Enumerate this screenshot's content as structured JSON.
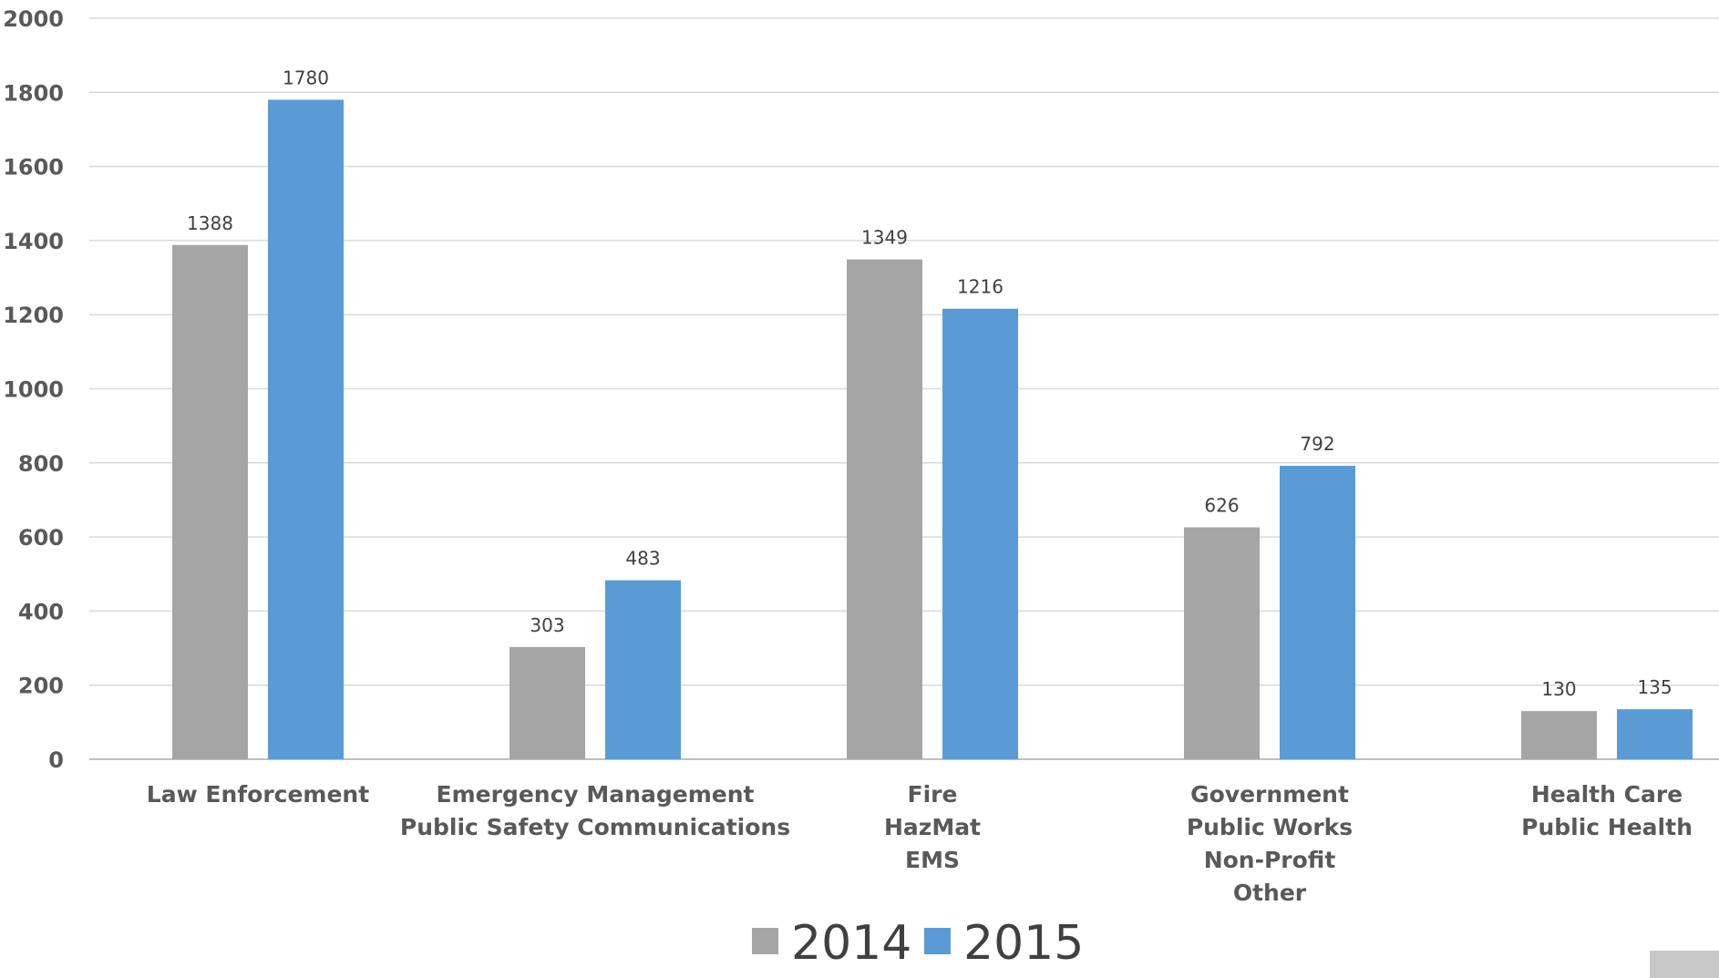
{
  "chart_data": {
    "type": "bar",
    "title": "",
    "categories": [
      [
        "Law Enforcement"
      ],
      [
        "Emergency Management",
        "Public Safety Communications"
      ],
      [
        "Fire",
        "HazMat",
        "EMS"
      ],
      [
        "Government",
        "Public Works",
        "Non-Profit",
        "Other"
      ],
      [
        "Health Care",
        "Public Health"
      ]
    ],
    "series": [
      {
        "name": "2014",
        "color": "#a5a5a5",
        "values": [
          1388,
          303,
          1349,
          626,
          130
        ]
      },
      {
        "name": "2015",
        "color": "#5b9bd5",
        "values": [
          1780,
          483,
          1216,
          792,
          135
        ]
      }
    ],
    "ylim": [
      0,
      2000
    ],
    "yticks": [
      0,
      200,
      400,
      600,
      800,
      1000,
      1200,
      1400,
      1600,
      1800,
      2000
    ],
    "grid": true,
    "legend": "bottom-center",
    "data_labels": true
  }
}
